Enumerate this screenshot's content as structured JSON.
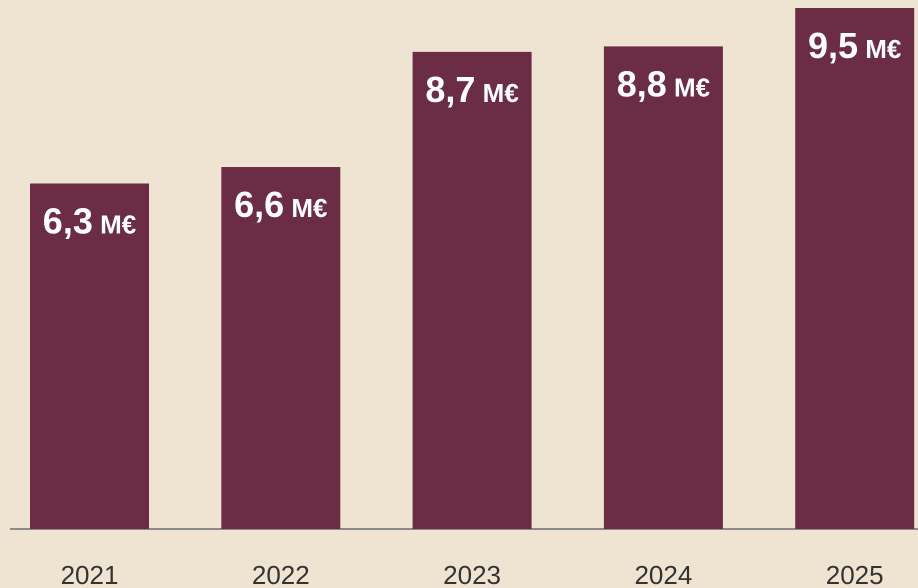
{
  "chart_data": {
    "type": "bar",
    "categories": [
      "2021",
      "2022",
      "2023",
      "2024",
      "2025"
    ],
    "values": [
      6.3,
      6.6,
      8.7,
      8.8,
      9.5
    ],
    "value_labels": [
      "6,3 M€",
      "6,6 M€",
      "8,7 M€",
      "8,8 M€",
      "9,5 M€"
    ],
    "color": "#6b2d45"
  }
}
